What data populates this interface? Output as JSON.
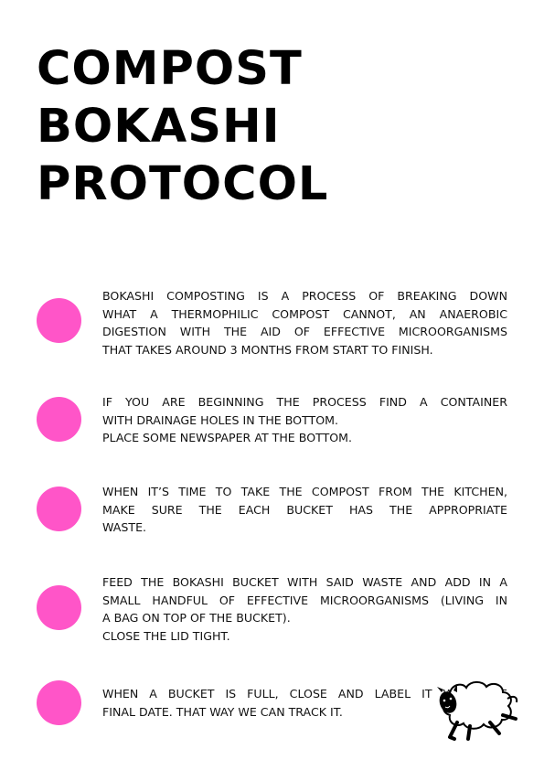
{
  "title": {
    "lines": [
      "COMPOST",
      "BOKASHI",
      "PROTOCOL"
    ]
  },
  "accent_color": "#ff55c8",
  "steps": [
    {
      "lines": [
        "BOKASHI COMPOSTING IS A PROCESS OF BREAKING DOWN",
        "WHAT A THERMOPHILIC COMPOST CANNOT, AN ANAEROBIC",
        "DIGESTION WITH THE AID OF EFFECTIVE MICROORGANISMS",
        "THAT TAKES AROUND 3 MONTHS FROM START TO FINISH."
      ]
    },
    {
      "lines": [
        "IF YOU ARE BEGINNING THE PROCESS FIND A CONTAINER",
        "WITH DRAINAGE HOLES IN THE BOTTOM.",
        "PLACE SOME NEWSPAPER AT THE BOTTOM."
      ]
    },
    {
      "lines": [
        "WHEN IT’S TIME TO  TAKE THE COMPOST FROM THE KITCHEN,",
        "MAKE SURE THE EACH BUCKET HAS THE APPROPRIATE",
        "WASTE."
      ]
    },
    {
      "lines": [
        "FEED THE BOKASHI BUCKET WITH SAID WASTE AND ADD IN A",
        "SMALL HANDFUL OF EFFECTIVE MICROORGANISMS (LIVING IN",
        "A BAG ON TOP OF THE BUCKET).",
        "CLOSE THE LID TIGHT."
      ]
    },
    {
      "lines": [
        "WHEN A BUCKET IS FULL, CLOSE AND LABEL IT WITH THE",
        "FINAL DATE. THAT WAY WE CAN TRACK IT."
      ]
    }
  ],
  "illustration": {
    "icon": "sheep-icon"
  }
}
